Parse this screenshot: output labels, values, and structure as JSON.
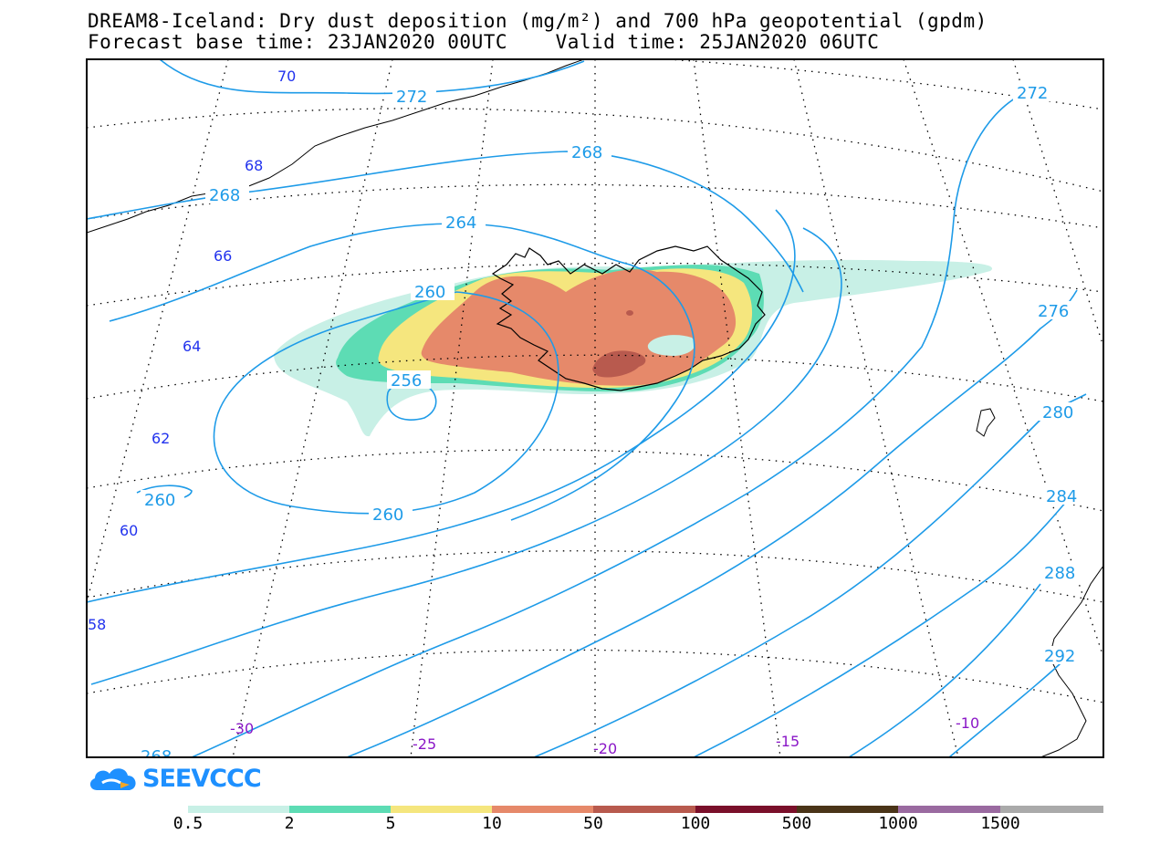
{
  "title": {
    "line1": "DREAM8-Iceland: Dry dust deposition (mg/m²) and 700 hPa geopotential (gpdm)",
    "line2": "Forecast base time: 23JAN2020 00UTC    Valid time: 25JAN2020 06UTC"
  },
  "logo": {
    "text": "SEEVCCC"
  },
  "latitude_labels": [
    "70",
    "68",
    "66",
    "64",
    "62",
    "60",
    "58"
  ],
  "longitude_labels": [
    "-30",
    "-25",
    "-20",
    "-15",
    "-10"
  ],
  "isolines": {
    "labels": [
      "272",
      "268",
      "264",
      "260",
      "256",
      "260",
      "260",
      "268",
      "272",
      "276",
      "280",
      "284",
      "288",
      "292",
      "268"
    ]
  },
  "colorbar": {
    "ticks": [
      "0.5",
      "2",
      "5",
      "10",
      "50",
      "100",
      "500",
      "1000",
      "1500"
    ],
    "colors": [
      "#c8f0e6",
      "#5ddcb4",
      "#f5e67e",
      "#e6896a",
      "#b85a4e",
      "#7a0f2a",
      "#4a3418",
      "#9a6aa0",
      "#aaaaaa"
    ]
  },
  "colors": {
    "isoline": "#1e9be8",
    "coast": "#000000",
    "dust_low": "#c8f0e6",
    "dust_2": "#5ddcb4",
    "dust_5": "#f5e67e",
    "dust_10": "#e6896a",
    "dust_50": "#b85a4e"
  }
}
